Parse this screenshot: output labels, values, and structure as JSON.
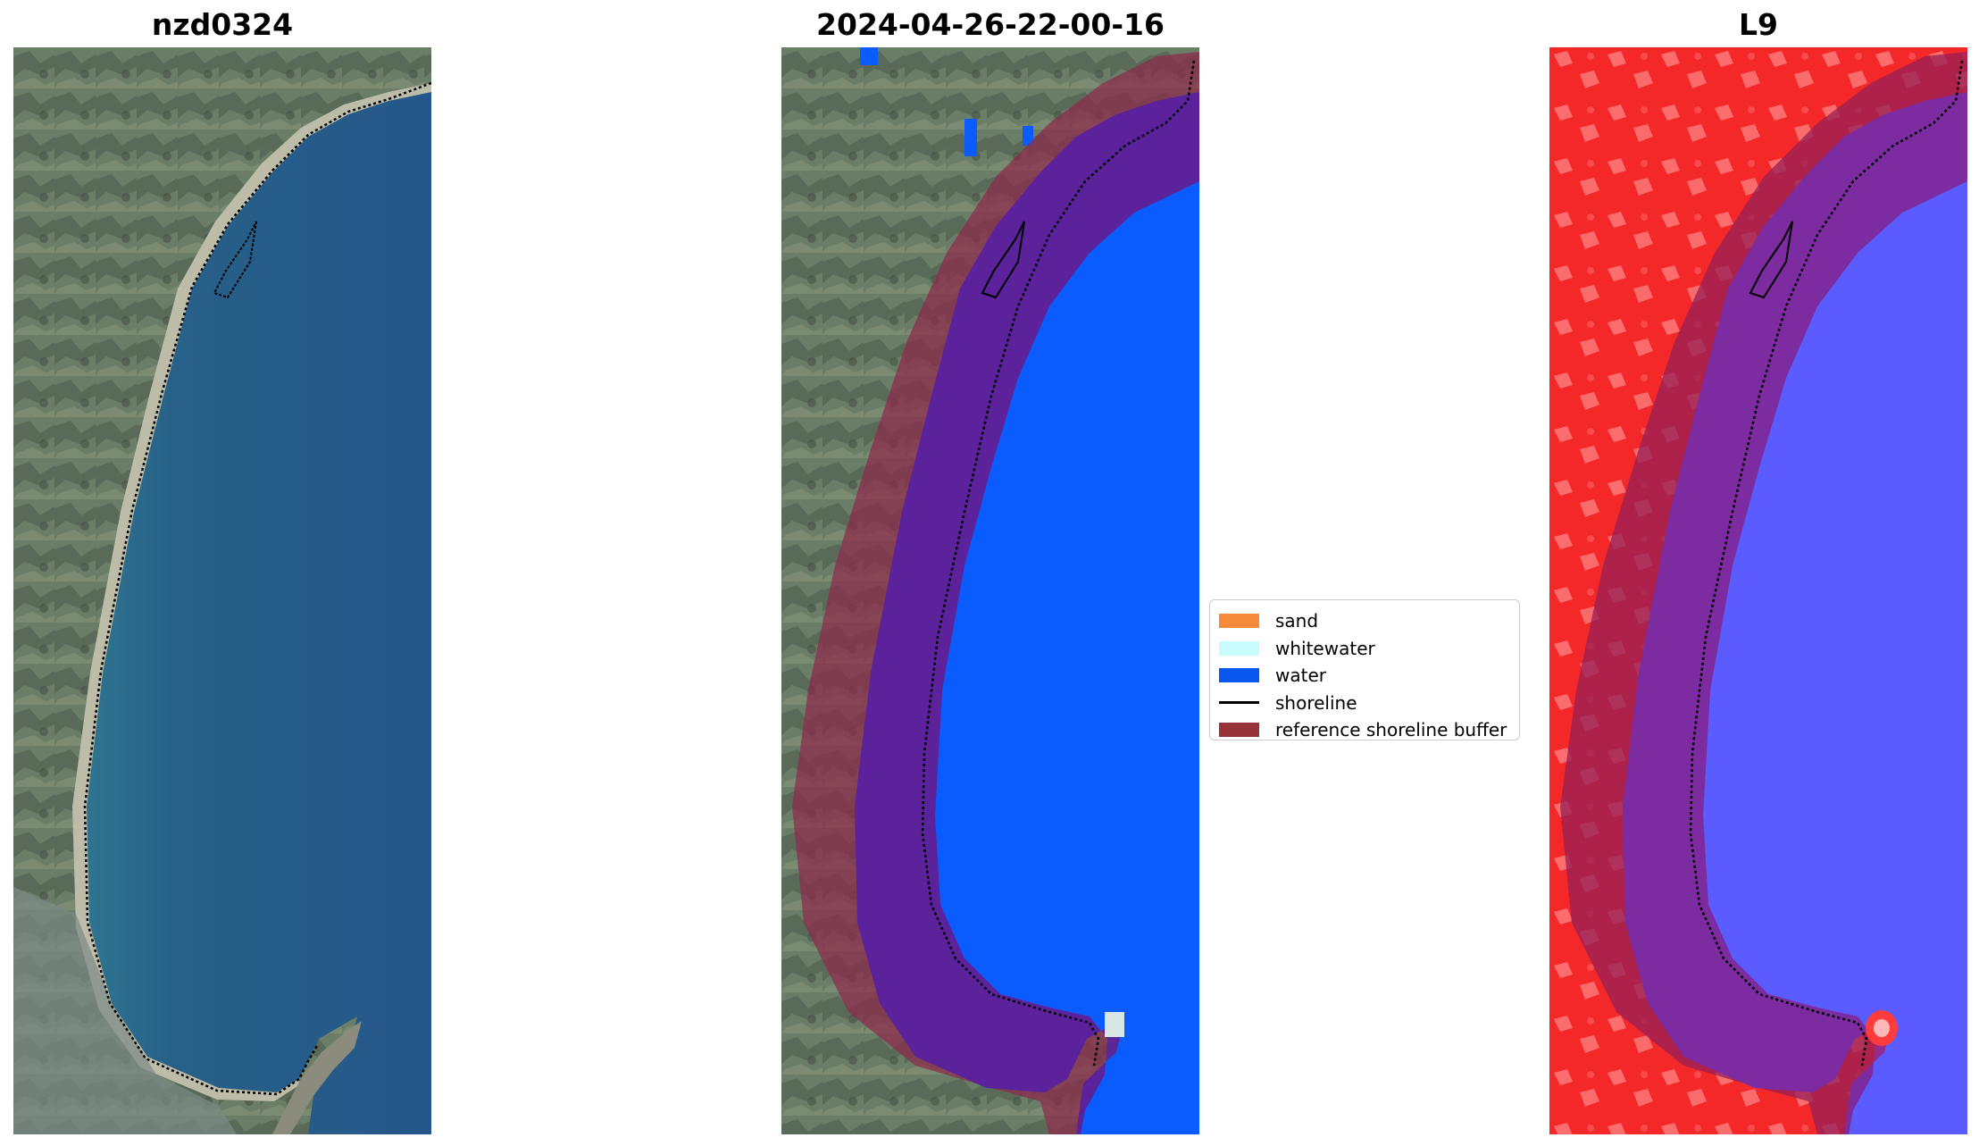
{
  "panels": [
    {
      "title": "nzd0324"
    },
    {
      "title": "2024-04-26-22-00-16"
    },
    {
      "title": "L9"
    }
  ],
  "legend": {
    "items": [
      {
        "label": "sand",
        "color": "#f58a3a",
        "kind": "patch"
      },
      {
        "label": "whitewater",
        "color": "#c8fcfc",
        "kind": "patch"
      },
      {
        "label": "water",
        "color": "#0a56f0",
        "kind": "patch"
      },
      {
        "label": "shoreline",
        "color": "#000000",
        "kind": "line"
      },
      {
        "label": "reference shoreline buffer",
        "color": "#953338",
        "kind": "patch"
      }
    ]
  },
  "colors": {
    "rgb_land": "#5d7462",
    "rgb_sea": "#285a8c",
    "classified_water": "#0a5cff",
    "buffer_overlay": "#8e2a4c",
    "index_land": "#f52a2a",
    "index_water": "#5a5cff",
    "index_buffer": "#951f57"
  }
}
